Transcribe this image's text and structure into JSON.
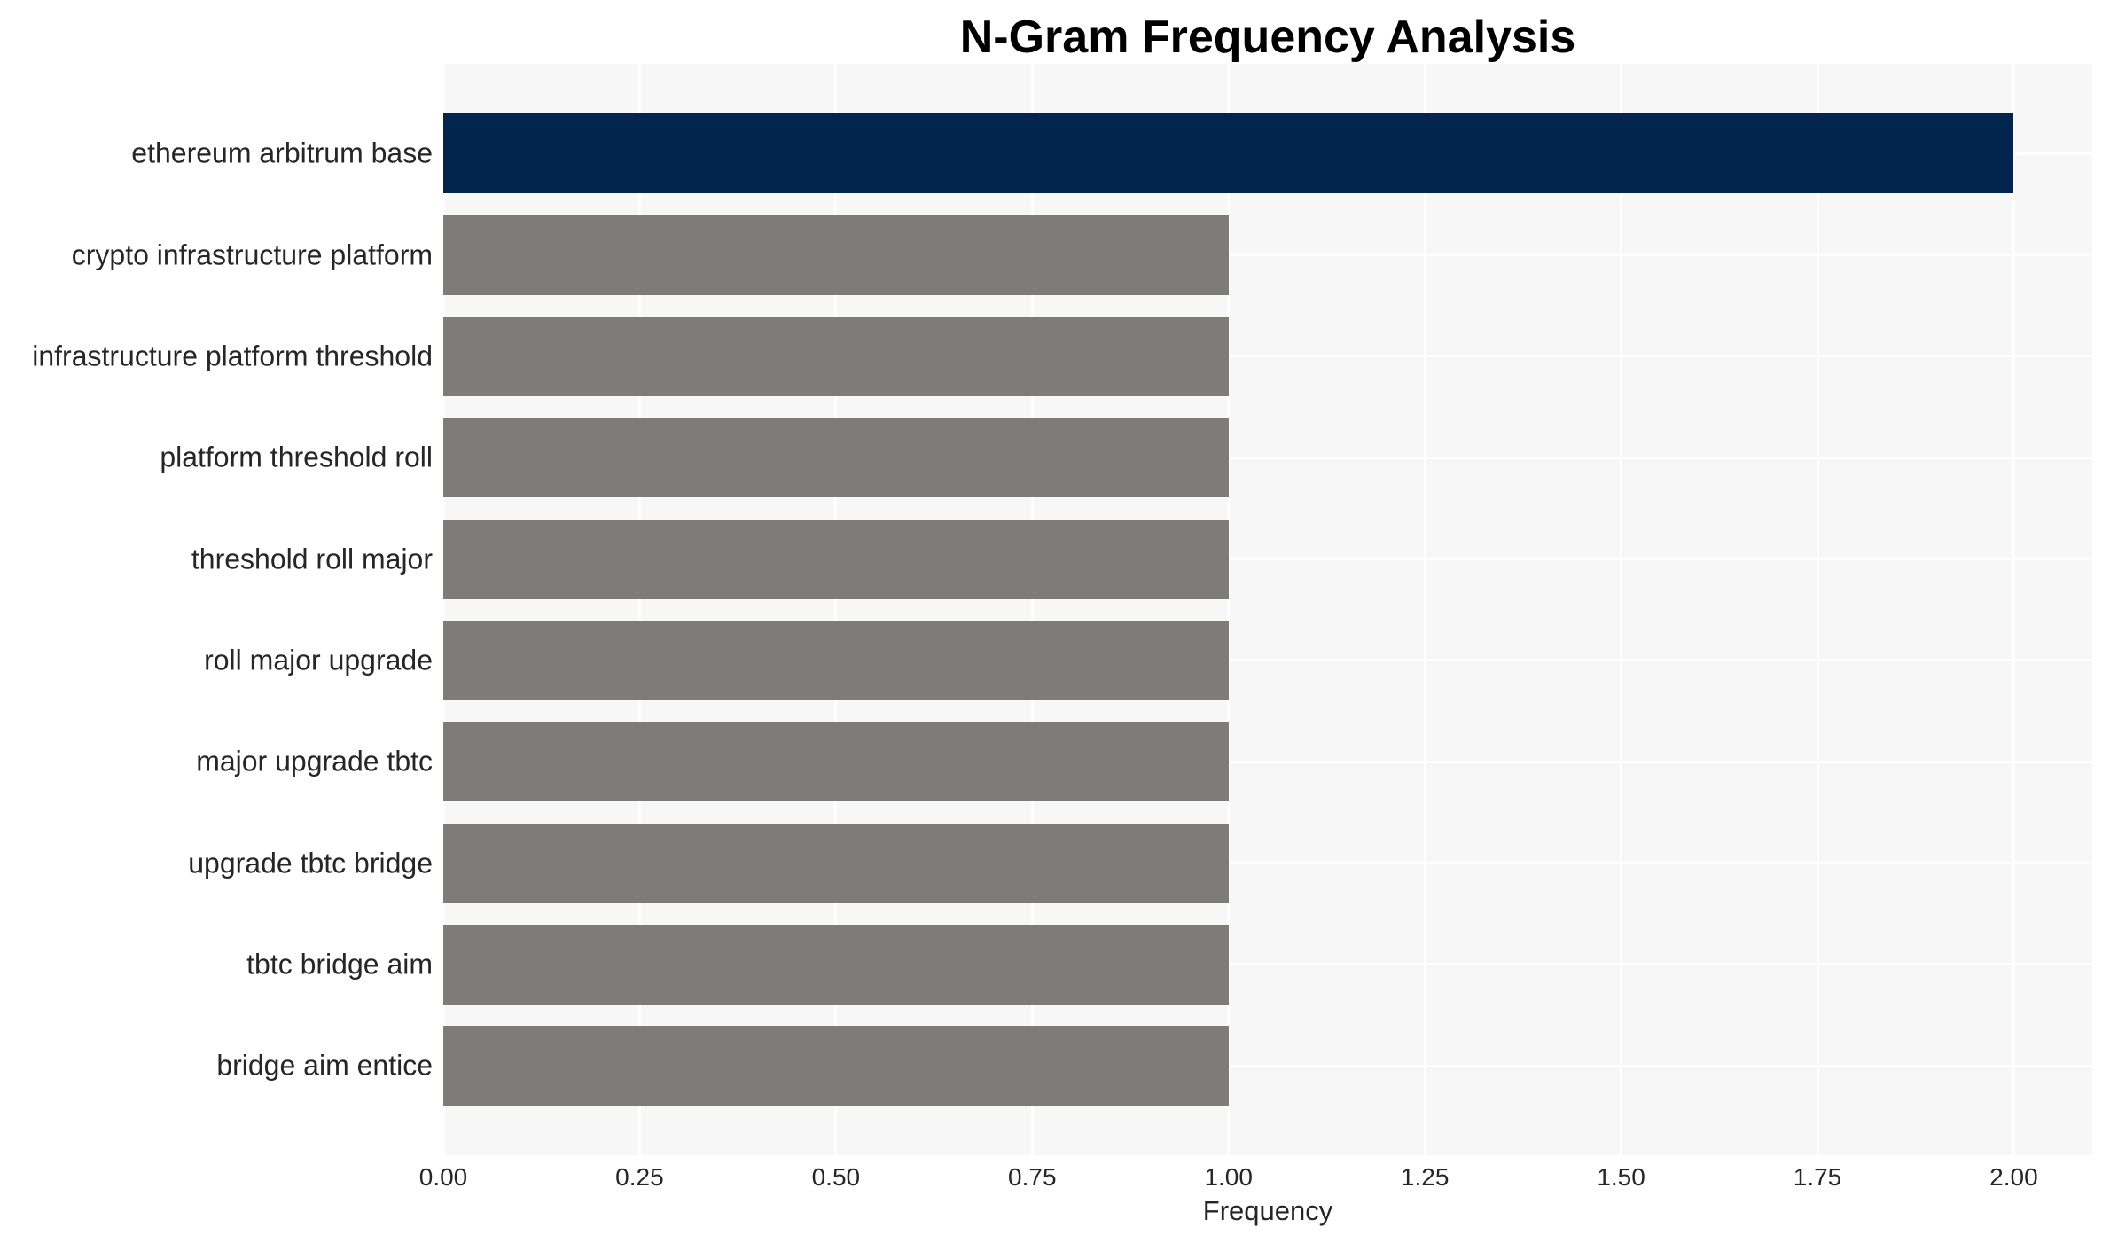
{
  "chart_data": {
    "type": "bar",
    "orientation": "horizontal",
    "title": "N-Gram Frequency Analysis",
    "xlabel": "Frequency",
    "ylabel": "",
    "categories": [
      "ethereum arbitrum base",
      "crypto infrastructure platform",
      "infrastructure platform threshold",
      "platform threshold roll",
      "threshold roll major",
      "roll major upgrade",
      "major upgrade tbtc",
      "upgrade tbtc bridge",
      "tbtc bridge aim",
      "bridge aim entice"
    ],
    "values": [
      2,
      1,
      1,
      1,
      1,
      1,
      1,
      1,
      1,
      1
    ],
    "xlim": [
      0,
      2.1
    ],
    "xticks": [
      0,
      0.25,
      0.5,
      0.75,
      1,
      1.25,
      1.5,
      1.75,
      2
    ],
    "xtick_labels": [
      "0.00",
      "0.25",
      "0.50",
      "0.75",
      "1.00",
      "1.25",
      "1.50",
      "1.75",
      "2.00"
    ],
    "grid": true,
    "legend": false,
    "bar_colors": [
      "#02254d",
      "#7d7c78",
      "#7d7c78",
      "#7d7c78",
      "#7d7c78",
      "#7d7c78",
      "#7d7c78",
      "#7d7c78",
      "#7d7c78",
      "#7d7c78"
    ],
    "colors": {
      "highlight_bar": "#02254d",
      "default_bar": "#7d7c78",
      "plot_background": "#f7f7f7",
      "grid_line": "#ffffff",
      "tick_text": "#262626",
      "title_text": "#000000"
    }
  }
}
